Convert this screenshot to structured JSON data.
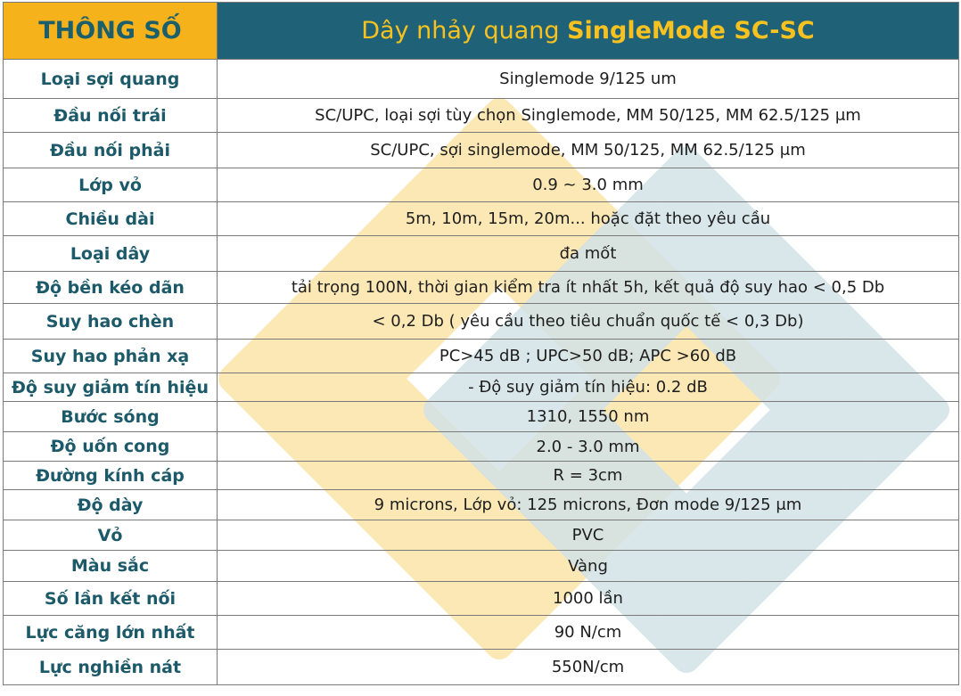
{
  "header": {
    "left": "THÔNG SỐ",
    "right_prefix": "Dây nhảy quang ",
    "right_emphasis": "SingleMode SC-SC"
  },
  "rows": [
    {
      "label": "Loại sợi quang",
      "value": "Singlemode 9/125 um"
    },
    {
      "label": "Đầu nối trái",
      "value": "SC/UPC, loại sợi tùy chọn Singlemode, MM 50/125, MM 62.5/125 μm"
    },
    {
      "label": "Đầu nối phải",
      "value": "SC/UPC, sợi singlemode, MM 50/125, MM 62.5/125 μm"
    },
    {
      "label": "Lớp vỏ",
      "value": "0.9 ~ 3.0 mm"
    },
    {
      "label": "Chiều dài",
      "value": "5m, 10m, 15m, 20m... hoặc đặt theo yêu cầu"
    },
    {
      "label": "Loại dây",
      "value": "đa mốt"
    },
    {
      "label": "Độ bền kéo dãn",
      "value": "tải trọng 100N, thời gian kiểm tra ít nhất 5h, kết quả độ suy hao < 0,5 Db"
    },
    {
      "label": "Suy hao chèn",
      "value": "< 0,2 Db ( yêu cầu theo tiêu chuẩn quốc tế < 0,3 Db)"
    },
    {
      "label": "Suy hao phản xạ",
      "value": "PC>45 dB ; UPC>50 dB; APC >60 dB"
    },
    {
      "label": "Độ suy giảm tín hiệu",
      "value": "- Độ suy giảm tín hiệu: 0.2 dB"
    },
    {
      "label": "Bước sóng",
      "value": "1310, 1550 nm"
    },
    {
      "label": "Độ uốn cong",
      "value": "2.0 - 3.0 mm"
    },
    {
      "label": "Đường kính cáp",
      "value": "R = 3cm"
    },
    {
      "label": "Độ dày",
      "value": "9 microns, Lớp vỏ: 125 microns, Đơn mode 9/125 μm"
    },
    {
      "label": "Vỏ",
      "value": "PVC"
    },
    {
      "label": "Màu sắc",
      "value": "Vàng"
    },
    {
      "label": "Số lần kết nối",
      "value": "1000 lần"
    },
    {
      "label": "Lực căng lớn nhất",
      "value": "90 N/cm"
    },
    {
      "label": "Lực nghiền nát",
      "value": "550N/cm"
    }
  ],
  "colors": {
    "header_left_bg": "#f5b21b",
    "header_right_bg": "#1f6277",
    "label_text": "#1d5a69",
    "watermark_yellow": "#fbe7b0",
    "watermark_blue": "#cfdfe4"
  }
}
